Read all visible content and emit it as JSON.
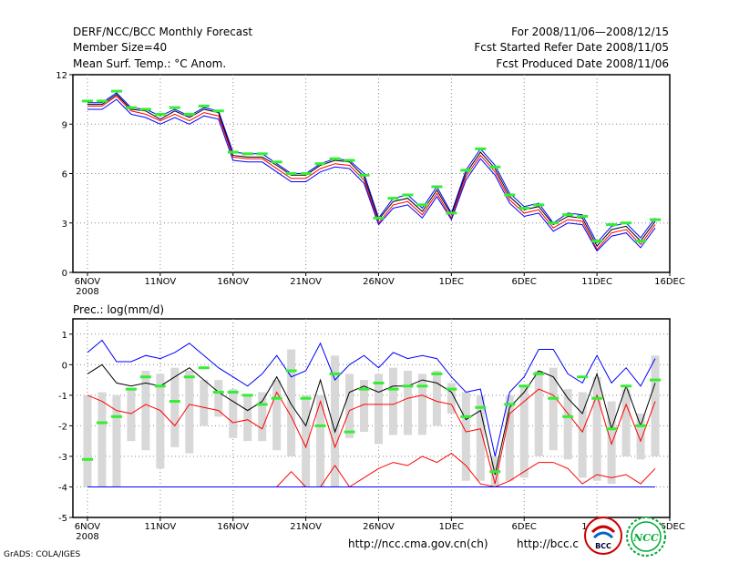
{
  "header": {
    "title": "DERF/NCC/BCC Monthly Forecast",
    "member_size": "Member Size=40",
    "variable": "Mean Surf. Temp.: °C Anom.",
    "period": "For 2008/11/06—2008/12/15",
    "started": "Fcst Started Refer Date 2008/11/05",
    "produced": "Fcst Produced Date 2008/11/06"
  },
  "prec_title": "Prec.: log(mm/d)",
  "footer": {
    "grads": "GrADS: COLA/IGES",
    "url1": "http://ncc.cma.gov.cn(ch)",
    "url2": "http://bcc.c"
  },
  "logos": {
    "bcc": "BCC",
    "ncc": "NCC"
  },
  "colors": {
    "upper": "#0000ff",
    "mean": "#000000",
    "inner": "#ff0000",
    "obs": "#33ee33",
    "box": "#d8d8d8"
  },
  "chart_data": [
    {
      "type": "line",
      "title": "Mean Surf. Temp.: °C Anom.",
      "x_ticks": [
        {
          "day": 0,
          "label": "6NOV",
          "sub": "2008"
        },
        {
          "day": 5,
          "label": "11NOV"
        },
        {
          "day": 10,
          "label": "16NOV"
        },
        {
          "day": 15,
          "label": "21NOV"
        },
        {
          "day": 20,
          "label": "26NOV"
        },
        {
          "day": 25,
          "label": "1DEC"
        },
        {
          "day": 30,
          "label": "6DEC"
        },
        {
          "day": 35,
          "label": "11DEC"
        },
        {
          "day": 40,
          "label": "16DEC"
        }
      ],
      "xlim": [
        -1,
        40
      ],
      "ylim": [
        0,
        12
      ],
      "y_ticks": [
        0,
        3,
        6,
        9,
        12
      ],
      "days": [
        0,
        1,
        2,
        3,
        4,
        5,
        6,
        7,
        8,
        9,
        10,
        11,
        12,
        13,
        14,
        15,
        16,
        17,
        18,
        19,
        20,
        21,
        22,
        23,
        24,
        25,
        26,
        27,
        28,
        29,
        30,
        31,
        32,
        33,
        34,
        35,
        36,
        37,
        38,
        39
      ],
      "series": [
        {
          "name": "upper",
          "values": [
            10.3,
            10.3,
            10.9,
            10.0,
            9.9,
            9.5,
            9.9,
            9.5,
            10.0,
            9.8,
            7.3,
            7.2,
            7.2,
            6.6,
            6.0,
            6.0,
            6.6,
            6.9,
            6.8,
            6.0,
            3.3,
            4.5,
            4.7,
            3.9,
            5.2,
            3.6,
            6.2,
            7.5,
            6.5,
            4.8,
            4.0,
            4.2,
            3.0,
            3.6,
            3.5,
            1.8,
            2.8,
            3.0,
            2.1,
            3.3
          ]
        },
        {
          "name": "mean",
          "values": [
            10.2,
            10.2,
            10.8,
            9.9,
            9.8,
            9.3,
            9.8,
            9.4,
            9.9,
            9.7,
            7.1,
            7.0,
            7.0,
            6.5,
            5.9,
            5.9,
            6.5,
            6.8,
            6.7,
            5.8,
            3.2,
            4.3,
            4.5,
            3.7,
            5.0,
            3.5,
            6.0,
            7.3,
            6.3,
            4.6,
            3.8,
            4.0,
            2.9,
            3.4,
            3.3,
            1.6,
            2.6,
            2.8,
            1.9,
            3.1
          ]
        },
        {
          "name": "inner",
          "values": [
            10.1,
            10.1,
            10.7,
            9.8,
            9.6,
            9.2,
            9.6,
            9.2,
            9.7,
            9.5,
            7.0,
            6.9,
            6.9,
            6.3,
            5.7,
            5.7,
            6.3,
            6.6,
            6.5,
            5.6,
            3.0,
            4.1,
            4.3,
            3.5,
            4.8,
            3.3,
            5.8,
            7.1,
            6.1,
            4.4,
            3.6,
            3.8,
            2.7,
            3.2,
            3.1,
            1.4,
            2.4,
            2.6,
            1.7,
            2.9
          ]
        },
        {
          "name": "lower",
          "values": [
            9.9,
            9.9,
            10.5,
            9.6,
            9.4,
            9.0,
            9.4,
            9.0,
            9.5,
            9.3,
            6.8,
            6.7,
            6.7,
            6.1,
            5.5,
            5.5,
            6.1,
            6.4,
            6.3,
            5.4,
            2.9,
            3.9,
            4.1,
            3.3,
            4.6,
            3.2,
            5.6,
            6.9,
            5.9,
            4.2,
            3.4,
            3.6,
            2.5,
            3.0,
            2.9,
            1.3,
            2.2,
            2.4,
            1.5,
            2.7
          ]
        }
      ],
      "observed": [
        10.4,
        10.4,
        11.0,
        10.0,
        9.9,
        9.6,
        10.0,
        9.6,
        10.1,
        9.8,
        7.3,
        7.2,
        7.2,
        6.7,
        6.0,
        6.0,
        6.6,
        6.9,
        6.8,
        5.9,
        3.3,
        4.5,
        4.7,
        4.1,
        5.2,
        3.6,
        6.2,
        7.5,
        6.4,
        4.7,
        3.9,
        4.1,
        3.0,
        3.5,
        3.4,
        1.9,
        2.9,
        3.0,
        1.9,
        3.2
      ]
    },
    {
      "type": "bar",
      "title": "Prec.: log(mm/d)",
      "x_ticks": [
        {
          "day": 0,
          "label": "6NOV",
          "sub": "2008"
        },
        {
          "day": 5,
          "label": "11NOV"
        },
        {
          "day": 10,
          "label": "16NOV"
        },
        {
          "day": 15,
          "label": "21NOV"
        },
        {
          "day": 20,
          "label": "26NOV"
        },
        {
          "day": 25,
          "label": "1DEC"
        },
        {
          "day": 30,
          "label": "6DEC"
        },
        {
          "day": 35,
          "label": "11DEC"
        },
        {
          "day": 40,
          "label": "16DEC"
        }
      ],
      "xlim": [
        -1,
        40
      ],
      "ylim": [
        -5,
        1.5
      ],
      "y_ticks": [
        -5,
        -4,
        -3,
        -2,
        -1,
        0,
        1
      ],
      "days": [
        0,
        1,
        2,
        3,
        4,
        5,
        6,
        7,
        8,
        9,
        10,
        11,
        12,
        13,
        14,
        15,
        16,
        17,
        18,
        19,
        20,
        21,
        22,
        23,
        24,
        25,
        26,
        27,
        28,
        29,
        30,
        31,
        32,
        33,
        34,
        35,
        36,
        37,
        38,
        39
      ],
      "box_top": [
        -1.0,
        -0.9,
        -1.0,
        -0.8,
        -0.2,
        -0.3,
        -0.1,
        -0.2,
        -0.5,
        -0.5,
        -0.8,
        -1.0,
        -0.9,
        -0.5,
        0.5,
        -1.0,
        -1.0,
        0.3,
        -0.3,
        -0.5,
        -0.3,
        -0.1,
        -0.2,
        -0.3,
        -0.2,
        -0.6,
        -0.9,
        -1.0,
        -3.0,
        -1.0,
        -0.7,
        -0.2,
        -0.1,
        -0.8,
        -0.9,
        -0.4,
        -1.2,
        -0.8,
        -1.6,
        0.3
      ],
      "box_bottom": [
        -4.0,
        -4.0,
        -4.0,
        -2.5,
        -2.8,
        -3.4,
        -2.7,
        -2.9,
        -2.0,
        -1.7,
        -2.4,
        -2.5,
        -2.5,
        -2.8,
        -3.0,
        -4.0,
        -4.0,
        -4.0,
        -2.4,
        -2.2,
        -2.6,
        -2.3,
        -2.3,
        -2.3,
        -2.0,
        -1.6,
        -3.8,
        -3.8,
        -4.0,
        -3.8,
        -3.7,
        -3.0,
        -2.8,
        -3.1,
        -3.7,
        -3.8,
        -3.9,
        -3.0,
        -3.1,
        -3.0
      ],
      "series": [
        {
          "name": "upper",
          "values": [
            0.4,
            0.8,
            0.1,
            0.1,
            0.3,
            0.2,
            0.4,
            0.7,
            0.3,
            -0.1,
            -0.4,
            -0.7,
            -0.3,
            0.3,
            -0.4,
            -0.2,
            0.7,
            -0.5,
            0.0,
            0.3,
            -0.1,
            0.4,
            0.2,
            0.3,
            0.2,
            -0.4,
            -0.9,
            -0.8,
            -3.0,
            -0.9,
            -0.4,
            0.5,
            0.5,
            -0.3,
            -0.6,
            0.3,
            -0.6,
            -0.1,
            -0.7,
            0.2
          ]
        },
        {
          "name": "mean",
          "values": [
            -0.3,
            0.0,
            -0.6,
            -0.7,
            -0.6,
            -0.7,
            -0.4,
            -0.1,
            -0.5,
            -0.9,
            -1.2,
            -1.5,
            -1.2,
            -0.4,
            -1.3,
            -2.0,
            -0.5,
            -2.2,
            -0.9,
            -0.7,
            -0.9,
            -0.7,
            -0.7,
            -0.5,
            -0.6,
            -0.9,
            -1.8,
            -1.5,
            -3.6,
            -1.4,
            -0.9,
            -0.2,
            -0.4,
            -1.1,
            -1.6,
            -0.3,
            -2.1,
            -0.7,
            -2.0,
            -0.6
          ]
        },
        {
          "name": "inner",
          "values": [
            -1.0,
            -1.2,
            -1.5,
            -1.6,
            -1.3,
            -1.5,
            -2.0,
            -1.3,
            -1.4,
            -1.5,
            -1.9,
            -1.8,
            -2.1,
            -0.9,
            -1.7,
            -2.7,
            -1.2,
            -2.7,
            -1.5,
            -1.3,
            -1.3,
            -1.3,
            -1.1,
            -1.0,
            -1.2,
            -1.3,
            -2.2,
            -2.1,
            -3.9,
            -1.6,
            -1.2,
            -0.8,
            -1.0,
            -1.6,
            -2.2,
            -1.0,
            -2.6,
            -1.3,
            -2.5,
            -1.2
          ]
        },
        {
          "name": "low_red",
          "values": [
            -4.0,
            -4.0,
            -4.0,
            -4.0,
            -4.0,
            -4.0,
            -4.0,
            -4.0,
            -4.0,
            -4.0,
            -4.0,
            -4.0,
            -4.0,
            -4.0,
            -3.5,
            -4.0,
            -4.0,
            -3.3,
            -4.0,
            -3.7,
            -3.4,
            -3.2,
            -3.3,
            -3.0,
            -3.2,
            -2.9,
            -3.3,
            -3.9,
            -4.0,
            -3.8,
            -3.5,
            -3.2,
            -3.2,
            -3.4,
            -3.9,
            -3.6,
            -3.7,
            -3.6,
            -3.9,
            -3.4
          ]
        },
        {
          "name": "floor_blue",
          "values": [
            -4.0,
            -4.0,
            -4.0,
            -4.0,
            -4.0,
            -4.0,
            -4.0,
            -4.0,
            -4.0,
            -4.0,
            -4.0,
            -4.0,
            -4.0,
            -4.0,
            -4.0,
            -4.0,
            -4.0,
            -4.0,
            -4.0,
            -4.0,
            -4.0,
            -4.0,
            -4.0,
            -4.0,
            -4.0,
            -4.0,
            -4.0,
            -4.0,
            -4.0,
            -4.0,
            -4.0,
            -4.0,
            -4.0,
            -4.0,
            -4.0,
            -4.0,
            -4.0,
            -4.0,
            -4.0,
            -4.0
          ]
        }
      ],
      "observed": [
        -3.1,
        -1.9,
        -1.7,
        -0.8,
        -0.4,
        -0.7,
        -1.2,
        -0.4,
        -0.1,
        -0.9,
        -0.9,
        -1.0,
        -1.3,
        -1.1,
        -0.2,
        -1.1,
        -2.0,
        -0.3,
        -2.2,
        -0.8,
        -0.6,
        -0.8,
        -0.7,
        -0.7,
        -0.3,
        -0.8,
        -1.7,
        -1.4,
        -3.5,
        -1.3,
        -0.7,
        -0.3,
        -1.1,
        -1.7,
        -0.4,
        -1.1,
        -2.1,
        -0.7,
        -2.0,
        -0.5
      ]
    }
  ]
}
